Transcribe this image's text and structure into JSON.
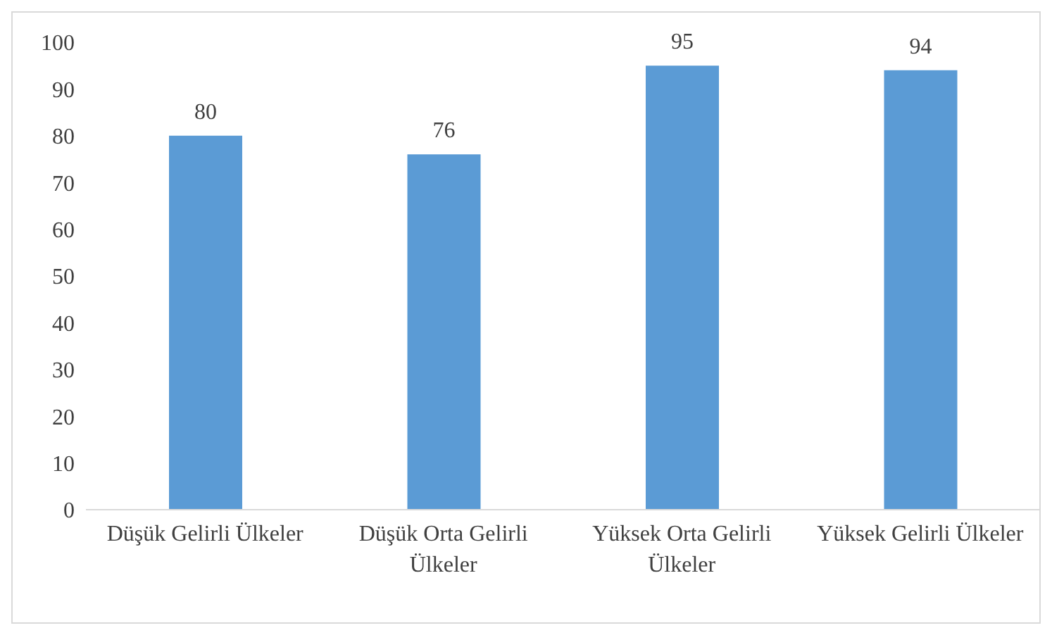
{
  "chart_data": {
    "type": "bar",
    "categories": [
      "Düşük Gelirli Ülkeler",
      "Düşük Orta Gelirli Ülkeler",
      "Yüksek Orta Gelirli Ülkeler",
      "Yüksek Gelirli Ülkeler"
    ],
    "values": [
      80,
      76,
      95,
      94
    ],
    "color": "#5b9bd5",
    "ylim": [
      0,
      100
    ],
    "yticks": [
      0,
      10,
      20,
      30,
      40,
      50,
      60,
      70,
      80,
      90,
      100
    ],
    "data_labels": true
  }
}
